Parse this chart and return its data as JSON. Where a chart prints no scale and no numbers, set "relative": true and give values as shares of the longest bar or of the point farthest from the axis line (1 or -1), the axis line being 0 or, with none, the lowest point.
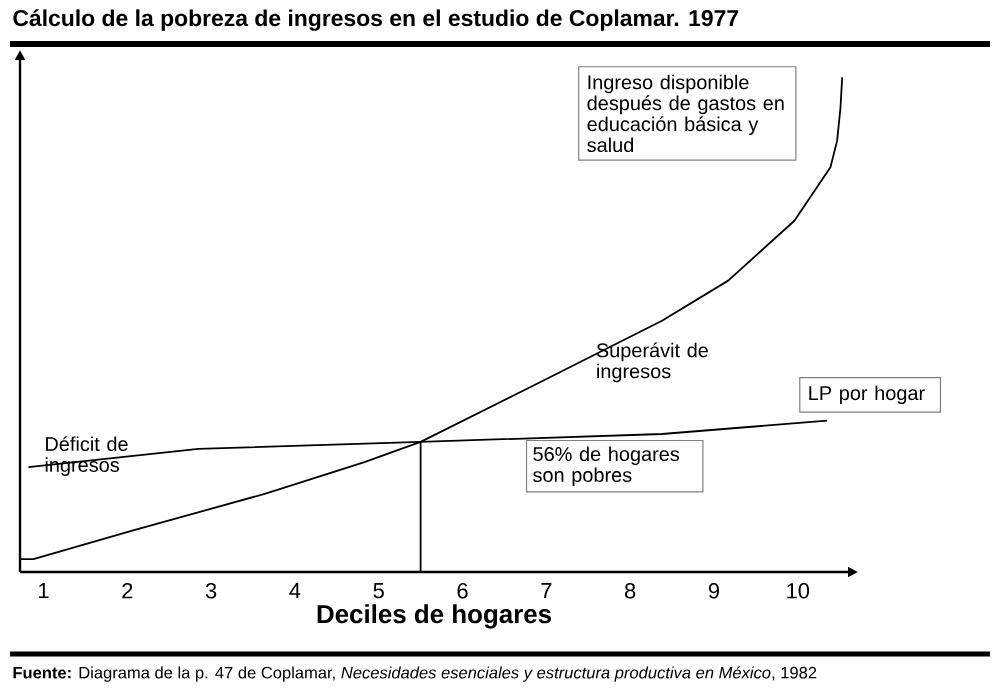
{
  "chart_data": {
    "type": "line",
    "title": "Cálculo de la pobreza de ingresos en el estudio de Coplamar. 1977",
    "xlabel": "Deciles de hogares",
    "relative": true,
    "xlim": [
      0.72,
      10.6
    ],
    "xticks": [
      1,
      2,
      3,
      4,
      5,
      6,
      7,
      8,
      9,
      10
    ],
    "series": [
      {
        "name": "Ingreso disponible después de gastos en educación básica y salud",
        "color": "#000000",
        "x": [
          0.72,
          0.88,
          2.07,
          3.64,
          4.83,
          5.5,
          6.8,
          8.38,
          9.17,
          9.96,
          10.39,
          10.47,
          10.51,
          10.53
        ],
        "values": [
          0.026,
          0.026,
          0.084,
          0.158,
          0.222,
          0.263,
          0.373,
          0.508,
          0.589,
          0.71,
          0.818,
          0.872,
          0.939,
          1.0
        ]
      },
      {
        "name": "LP por hogar",
        "color": "#000000",
        "x": [
          0.82,
          2.85,
          5.5,
          8.38,
          10.35
        ],
        "values": [
          0.212,
          0.249,
          0.263,
          0.279,
          0.306
        ]
      },
      {
        "color": "#000000",
        "x": [
          5.5,
          5.5
        ],
        "values": [
          0,
          0.263
        ]
      }
    ],
    "annotations": [
      "Superávit de ingresos",
      "Déficit de ingresos",
      "56% de hogares son pobres",
      "**Fuente:** Diagrama de la p. 47 de Coplamar, *Necesidades esenciales y estructura productiva en México*, 1982"
    ]
  }
}
